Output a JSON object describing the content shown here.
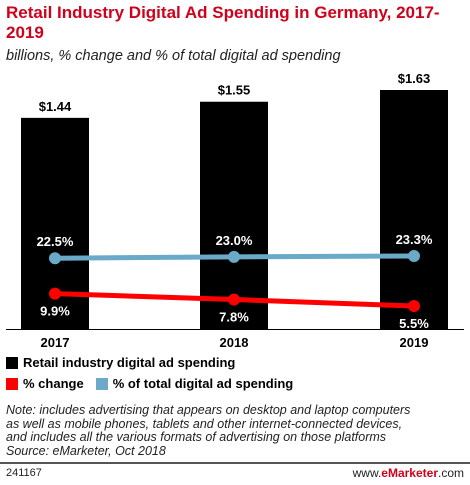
{
  "header": {
    "title": "Retail Industry Digital Ad Spending in Germany, 2017-2019",
    "subtitle": "billions, % change and % of total digital ad spending"
  },
  "chart_data": {
    "type": "bar",
    "categories": [
      "2017",
      "2018",
      "2019"
    ],
    "series": [
      {
        "name": "Retail industry digital ad spending",
        "kind": "bar",
        "color": "#000000",
        "values": [
          1.44,
          1.55,
          1.63
        ],
        "labels": [
          "$1.44",
          "$1.55",
          "$1.63"
        ]
      },
      {
        "name": "% change",
        "kind": "line",
        "color": "#ff0000",
        "values": [
          9.9,
          7.8,
          5.5
        ],
        "labels": [
          "9.9%",
          "7.8%",
          "5.5%"
        ]
      },
      {
        "name": "% of total digital ad spending",
        "kind": "line",
        "color": "#6aaac8",
        "values": [
          22.5,
          23.0,
          23.3
        ],
        "labels": [
          "22.5%",
          "23.0%",
          "23.3%"
        ]
      }
    ],
    "ylim_bars": [
      0,
      1.63
    ],
    "ylim_lines": [
      0,
      23.3
    ],
    "legend_position": "bottom"
  },
  "note": {
    "lines": [
      "Note: includes advertising that appears on desktop and laptop computers",
      "as well as mobile phones, tablets and other internet-connected devices,",
      "and includes all the various formats of advertising on those platforms"
    ],
    "source": "Source: eMarketer, Oct 2018"
  },
  "footer": {
    "chart_id": "241167",
    "brand_prefix": "www.",
    "brand_name": "eMarketer",
    "brand_suffix": ".com"
  }
}
